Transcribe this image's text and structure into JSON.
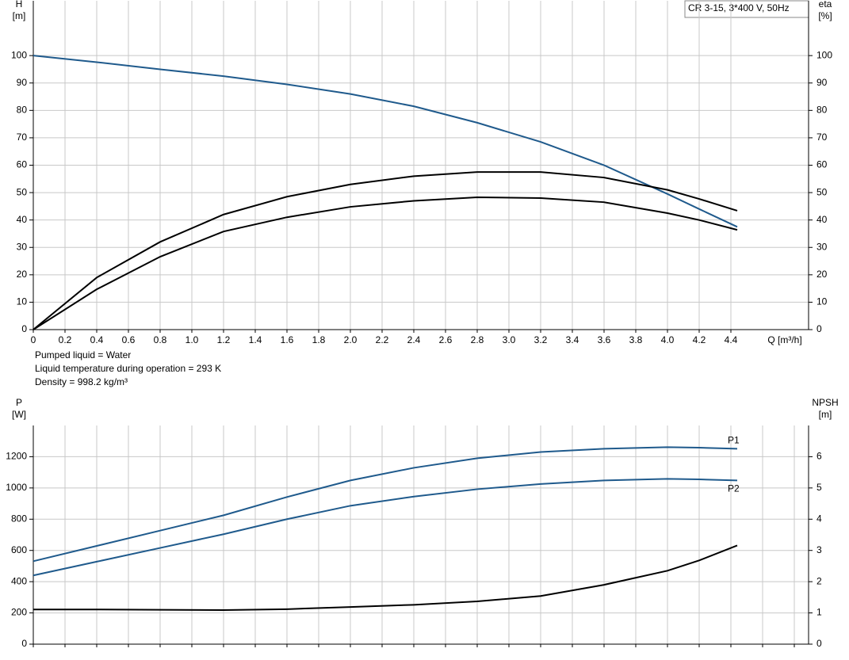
{
  "chart_data": [
    {
      "type": "line",
      "title": "CR 3-15, 3*400 V, 50Hz",
      "ylabel": [
        "H",
        "[m]"
      ],
      "y2label": [
        "eta",
        "[%]"
      ],
      "xlabel": "Q [m³/h]",
      "annotations": [
        "Pumped liquid = Water",
        "Liquid temperature during operation = 293 K",
        "Density = 998.2 kg/m³"
      ],
      "x": [
        0,
        0.4,
        0.8,
        1.2,
        1.6,
        2.0,
        2.4,
        2.8,
        3.2,
        3.6,
        4.0,
        4.2,
        4.44
      ],
      "xlim": [
        0,
        4.89
      ],
      "xticks": [
        0,
        0.2,
        0.4,
        0.6,
        0.8,
        {
          "value": 1,
          "label": "1.0"
        },
        1.2,
        1.4,
        1.6,
        1.8,
        {
          "value": 2,
          "label": "2.0"
        },
        2.2,
        2.4,
        2.6,
        2.8,
        {
          "value": 3,
          "label": "3.0"
        },
        3.2,
        3.4,
        3.6,
        3.8,
        {
          "value": 4,
          "label": "4.0"
        },
        4.2,
        4.4
      ],
      "ylim": [
        0,
        120
      ],
      "yticks": [
        0,
        10,
        20,
        30,
        40,
        50,
        60,
        70,
        80,
        90,
        100
      ],
      "y2lim": [
        0,
        120
      ],
      "y2ticks": [
        0,
        10,
        20,
        30,
        40,
        50,
        60,
        70,
        80,
        90,
        100
      ],
      "grid": true,
      "series": [
        {
          "color": "#1f5a8c",
          "values": [
            100,
            97.6,
            95,
            92.5,
            89.5,
            86,
            81.5,
            75.5,
            68.5,
            60,
            49.5,
            44,
            37.5
          ]
        },
        {
          "color": "#000000",
          "axis": "y2",
          "values": [
            0,
            19,
            32,
            42,
            48.5,
            53,
            56,
            57.5,
            57.5,
            55.5,
            51,
            47.7,
            43.4
          ]
        },
        {
          "color": "#000000",
          "axis": "y2",
          "values": [
            0,
            14.7,
            26.6,
            35.8,
            41,
            44.8,
            47,
            48.3,
            48,
            46.5,
            42.5,
            40,
            36.4
          ]
        }
      ]
    },
    {
      "type": "line",
      "ylabel": [
        "P",
        "[W]"
      ],
      "y2label": [
        "NPSH",
        "[m]"
      ],
      "x": [
        0,
        0.4,
        0.8,
        1.2,
        1.6,
        2.0,
        2.4,
        2.8,
        3.2,
        3.6,
        4.0,
        4.2,
        4.44
      ],
      "xlim": [
        0,
        4.89
      ],
      "xticks": [
        0,
        0.2,
        0.4,
        0.6,
        0.8,
        1,
        1.2,
        1.4,
        1.6,
        1.8,
        2,
        2.2,
        2.4,
        2.6,
        2.8,
        3,
        3.2,
        3.4,
        3.6,
        3.8,
        4,
        4.2,
        4.4,
        4.6,
        4.8
      ],
      "ylim": [
        0,
        1400
      ],
      "yticks": [
        0,
        200,
        400,
        600,
        800,
        1000,
        1200
      ],
      "y2lim": [
        0,
        7
      ],
      "y2ticks": [
        0,
        1,
        2,
        3,
        4,
        5,
        6
      ],
      "grid": true,
      "series": [
        {
          "name": "P1",
          "color": "#1f5a8c",
          "values": [
            531,
            629,
            727,
            825,
            942,
            1048,
            1129,
            1190,
            1230,
            1251,
            1261,
            1258,
            1251
          ]
        },
        {
          "name": "P2",
          "color": "#1f5a8c",
          "values": [
            440,
            528,
            616,
            704,
            800,
            886,
            945,
            992,
            1025,
            1048,
            1058,
            1055,
            1048
          ]
        },
        {
          "color": "#000000",
          "axis": "y2",
          "values": [
            1.11,
            1.11,
            1.1,
            1.09,
            1.12,
            1.19,
            1.26,
            1.37,
            1.54,
            1.9,
            2.35,
            2.68,
            3.16
          ]
        }
      ]
    }
  ]
}
